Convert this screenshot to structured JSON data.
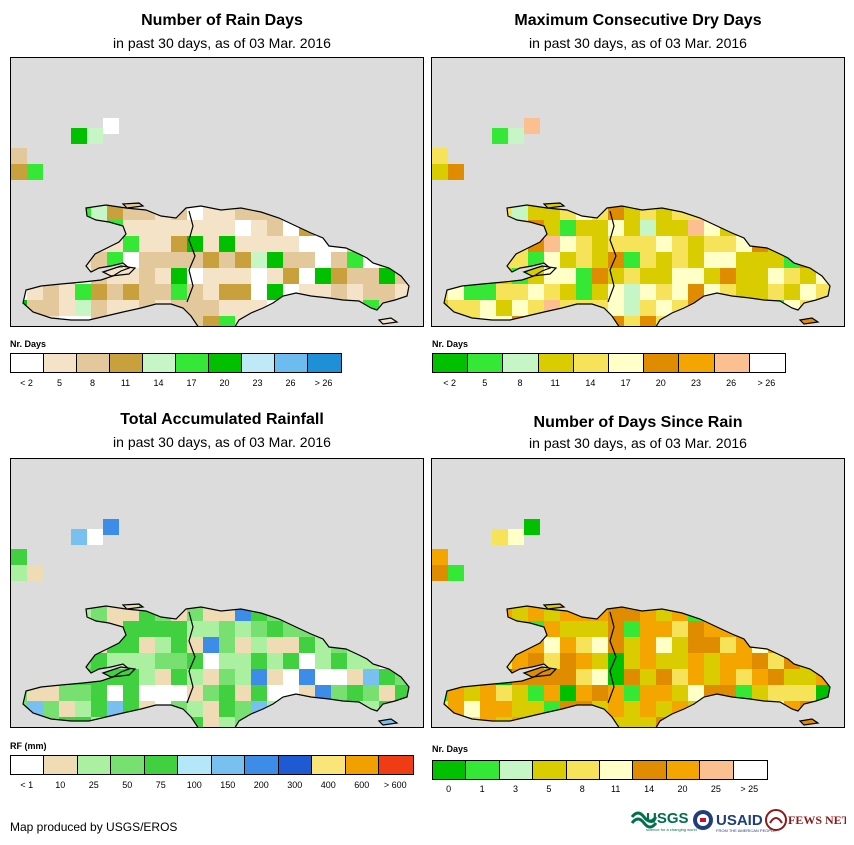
{
  "panels": [
    {
      "title": "Number of Rain Days",
      "subtitle": "in past 30 days, as of 03 Mar. 2016",
      "legend_title": "Nr. Days",
      "legend_colors": [
        "#ffffff",
        "#f5e3c8",
        "#e2c89a",
        "#c9a13c",
        "#c6f5c6",
        "#35e835",
        "#00c000",
        "#bfe9f7",
        "#6cbcf0",
        "#1f8fd6"
      ],
      "legend_labels": [
        "< 2",
        "5",
        "8",
        "11",
        "14",
        "17",
        "20",
        "23",
        "26",
        "> 26"
      ]
    },
    {
      "title": "Maximum Consecutive Dry Days",
      "subtitle": "in past 30 days, as of 03 Mar. 2016",
      "legend_title": "Nr. Days",
      "legend_colors": [
        "#00c000",
        "#35e835",
        "#c6f5c6",
        "#d9cc00",
        "#f7e35a",
        "#ffffc8",
        "#e08c00",
        "#f5a500",
        "#fcc090",
        "#ffffff"
      ],
      "legend_labels": [
        "< 2",
        "5",
        "8",
        "11",
        "14",
        "17",
        "20",
        "23",
        "26",
        "> 26"
      ]
    },
    {
      "title": "Total Accumulated Rainfall",
      "subtitle": "in past 30 days, as of 03 Mar. 2016",
      "legend_title": "RF (mm)",
      "legend_colors": [
        "#ffffff",
        "#f0dcb4",
        "#aaf0a0",
        "#78e070",
        "#40d040",
        "#b4e8f8",
        "#78c0f0",
        "#3c8ce8",
        "#1e5ad2",
        "#fae678",
        "#f0a000",
        "#f03c14"
      ],
      "legend_labels": [
        "< 1",
        "10",
        "25",
        "50",
        "75",
        "100",
        "150",
        "200",
        "300",
        "400",
        "600",
        "> 600"
      ]
    },
    {
      "title": "Number of Days Since Rain",
      "subtitle": "in past 30 days, as of 03 Mar. 2016",
      "legend_title": "Nr. Days",
      "legend_colors": [
        "#00c000",
        "#35e835",
        "#c6f5c6",
        "#d9cc00",
        "#f7e35a",
        "#ffffc8",
        "#e08c00",
        "#f5a500",
        "#fcc090",
        "#ffffff"
      ],
      "legend_labels": [
        "0",
        "1",
        "3",
        "5",
        "8",
        "11",
        "14",
        "20",
        "25",
        "> 25"
      ]
    }
  ],
  "credit": "Map produced by USGS/EROS",
  "logos": {
    "usgs": "USGS",
    "usgs_tagline": "science for a changing world",
    "usaid": "USAID",
    "usaid_tagline": "FROM THE AMERICAN PEOPLE",
    "fews": "FEWS NET"
  },
  "colors": {
    "water": "#dcdcdc",
    "coast": "#000000"
  }
}
